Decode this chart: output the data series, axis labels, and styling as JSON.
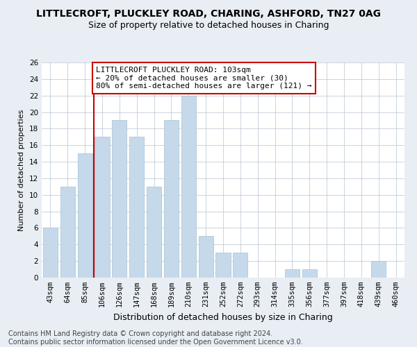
{
  "title": "LITTLECROFT, PLUCKLEY ROAD, CHARING, ASHFORD, TN27 0AG",
  "subtitle": "Size of property relative to detached houses in Charing",
  "xlabel": "Distribution of detached houses by size in Charing",
  "ylabel": "Number of detached properties",
  "categories": [
    "43sqm",
    "64sqm",
    "85sqm",
    "106sqm",
    "126sqm",
    "147sqm",
    "168sqm",
    "189sqm",
    "210sqm",
    "231sqm",
    "252sqm",
    "272sqm",
    "293sqm",
    "314sqm",
    "335sqm",
    "356sqm",
    "377sqm",
    "397sqm",
    "418sqm",
    "439sqm",
    "460sqm"
  ],
  "values": [
    6,
    11,
    15,
    17,
    19,
    17,
    11,
    19,
    22,
    5,
    3,
    3,
    0,
    0,
    1,
    1,
    0,
    0,
    0,
    2,
    0
  ],
  "bar_color": "#c6d9ea",
  "bar_edge_color": "#aec6d8",
  "vline_index": 3,
  "vline_color": "#cc0000",
  "annotation_text": "LITTLECROFT PLUCKLEY ROAD: 103sqm\n← 20% of detached houses are smaller (30)\n80% of semi-detached houses are larger (121) →",
  "annotation_box_color": "white",
  "annotation_box_edge": "#cc0000",
  "ylim": [
    0,
    26
  ],
  "yticks": [
    0,
    2,
    4,
    6,
    8,
    10,
    12,
    14,
    16,
    18,
    20,
    22,
    24,
    26
  ],
  "footnote": "Contains HM Land Registry data © Crown copyright and database right 2024.\nContains public sector information licensed under the Open Government Licence v3.0.",
  "background_color": "#e8eef4",
  "plot_background": "white",
  "grid_color": "#c0cdd8",
  "title_fontsize": 10,
  "subtitle_fontsize": 9,
  "xlabel_fontsize": 9,
  "ylabel_fontsize": 8,
  "tick_fontsize": 7.5,
  "annotation_fontsize": 8,
  "footnote_fontsize": 7
}
